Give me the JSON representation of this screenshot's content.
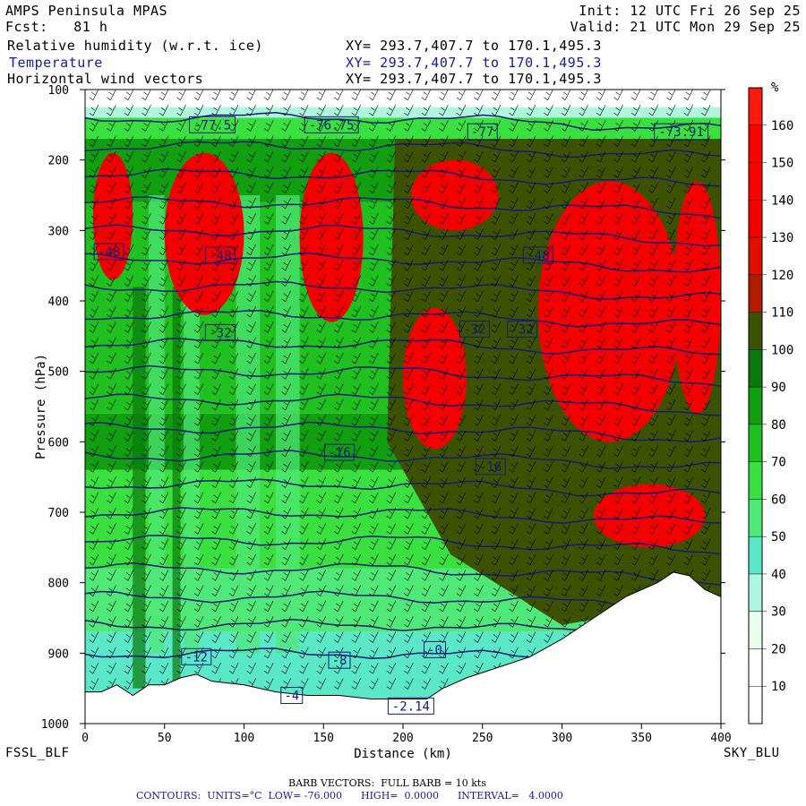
{
  "header": {
    "model": "AMPS Peninsula MPAS",
    "fcst_label": "Fcst:",
    "fcst_value": "81 h",
    "init": "Init: 12 UTC Fri 26 Sep 25",
    "valid": "Valid: 21 UTC Mon 29 Sep 25",
    "fields": [
      {
        "name": "Relative humidity (w.r.t. ice)",
        "xy": "XY= 293.7,407.7 to 170.1,495.3",
        "color": "#000000"
      },
      {
        "name": "Temperature",
        "xy": "XY= 293.7,407.7 to 170.1,495.3",
        "color": "#1a1a9a"
      },
      {
        "name": "Horizontal wind vectors",
        "xy": "XY= 293.7,407.7 to 170.1,495.3",
        "color": "#000000"
      }
    ]
  },
  "footer": {
    "left_station": "FSSL_BLF",
    "right_station": "SKY_BLU",
    "barb_note": "BARB VECTORS:  FULL BARB = 10 kts",
    "contours_note": "CONTOURS:  UNITS=°C  LOW= -76.000      HIGH=  0.0000      INTERVAL=   4.0000"
  },
  "chart_data": {
    "type": "heatmap",
    "xlabel": "Distance (km)",
    "ylabel": "Pressure (hPa)",
    "xlim": [
      0,
      400
    ],
    "ylim": [
      100,
      1000
    ],
    "x_ticks": [
      0,
      50,
      100,
      150,
      200,
      250,
      300,
      350,
      400
    ],
    "y_ticks": [
      100,
      200,
      300,
      400,
      500,
      600,
      700,
      800,
      900,
      1000
    ],
    "colorbar": {
      "unit": "%",
      "levels": [
        10,
        20,
        30,
        40,
        50,
        60,
        70,
        80,
        90,
        100,
        110,
        120,
        130,
        140,
        150,
        160
      ],
      "colors": [
        "#ffffff",
        "#ffffff",
        "#e8fff0",
        "#b0f5e0",
        "#5ae8c8",
        "#50e878",
        "#3ae040",
        "#20c020",
        "#119f11",
        "#0a780a",
        "#3d5200",
        "#b01c00",
        "#e01000",
        "#f50000",
        "#ff0000",
        "#ff0000",
        "#ff1a10"
      ]
    },
    "terrain_pressure": [
      [
        0,
        955
      ],
      [
        10,
        955
      ],
      [
        20,
        945
      ],
      [
        30,
        960
      ],
      [
        40,
        945
      ],
      [
        50,
        945
      ],
      [
        60,
        935
      ],
      [
        70,
        930
      ],
      [
        80,
        940
      ],
      [
        100,
        945
      ],
      [
        120,
        955
      ],
      [
        140,
        960
      ],
      [
        160,
        960
      ],
      [
        180,
        965
      ],
      [
        200,
        965
      ],
      [
        215,
        965
      ],
      [
        225,
        950
      ],
      [
        240,
        935
      ],
      [
        260,
        920
      ],
      [
        280,
        905
      ],
      [
        300,
        880
      ],
      [
        320,
        850
      ],
      [
        340,
        820
      ],
      [
        360,
        800
      ],
      [
        370,
        785
      ],
      [
        380,
        790
      ],
      [
        390,
        810
      ],
      [
        400,
        820
      ]
    ],
    "rh_regions": [
      {
        "level": 110,
        "x": [
          5,
          30
        ],
        "p": [
          190,
          370
        ]
      },
      {
        "level": 110,
        "x": [
          50,
          100
        ],
        "p": [
          190,
          420
        ]
      },
      {
        "level": 110,
        "x": [
          135,
          175
        ],
        "p": [
          190,
          430
        ]
      },
      {
        "level": 110,
        "x": [
          205,
          260
        ],
        "p": [
          200,
          300
        ]
      },
      {
        "level": 110,
        "x": [
          200,
          240
        ],
        "p": [
          410,
          610
        ]
      },
      {
        "level": 110,
        "x": [
          285,
          375
        ],
        "p": [
          230,
          600
        ]
      },
      {
        "level": 110,
        "x": [
          370,
          400
        ],
        "p": [
          230,
          560
        ]
      },
      {
        "level": 110,
        "x": [
          320,
          390
        ],
        "p": [
          660,
          750
        ]
      }
    ],
    "temperature_contours": [
      -76,
      -72,
      -68,
      -64,
      -60,
      -56,
      -52,
      -48,
      -44,
      -40,
      -36,
      -32,
      -28,
      -24,
      -20,
      -16,
      -12,
      -8,
      -4,
      0
    ],
    "temperature_labels": [
      {
        "text": "-77.5",
        "x": 80,
        "p": 150
      },
      {
        "text": "-76.75",
        "x": 155,
        "p": 150
      },
      {
        "text": "-77",
        "x": 250,
        "p": 160
      },
      {
        "text": "-73.91",
        "x": 375,
        "p": 160
      },
      {
        "text": "-48",
        "x": 15,
        "p": 330
      },
      {
        "text": "-48",
        "x": 85,
        "p": 335
      },
      {
        "text": "-48",
        "x": 285,
        "p": 335
      },
      {
        "text": "-32",
        "x": 85,
        "p": 445
      },
      {
        "text": "-32",
        "x": 245,
        "p": 440
      },
      {
        "text": "-32",
        "x": 275,
        "p": 440
      },
      {
        "text": "-16",
        "x": 160,
        "p": 615
      },
      {
        "text": "-16",
        "x": 255,
        "p": 635
      },
      {
        "text": "-12",
        "x": 70,
        "p": 905
      },
      {
        "text": "-4",
        "x": 130,
        "p": 960
      },
      {
        "text": "-8",
        "x": 160,
        "p": 910
      },
      {
        "text": "-0",
        "x": 220,
        "p": 895
      },
      {
        "text": "-2.14",
        "x": 205,
        "p": 975
      }
    ]
  }
}
